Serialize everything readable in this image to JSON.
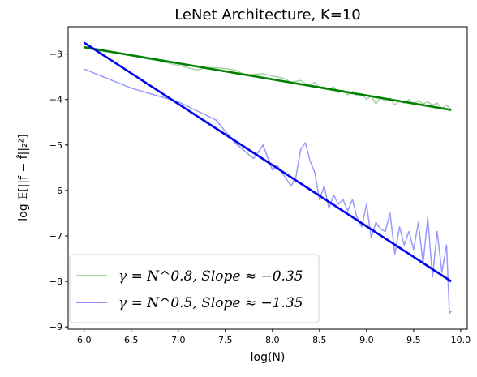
{
  "chart_data": {
    "type": "line",
    "title": "LeNet Architecture, K=10",
    "xlabel": "log(N)",
    "ylabel": "log 𝔼[||f − f̂||₂²]",
    "xlim": [
      5.83,
      10.07
    ],
    "ylim": [
      -9.05,
      -2.4
    ],
    "xticks": [
      6.0,
      6.5,
      7.0,
      7.5,
      8.0,
      8.5,
      9.0,
      9.5,
      10.0
    ],
    "xtick_labels": [
      "6.0",
      "6.5",
      "7.0",
      "7.5",
      "8.0",
      "8.5",
      "9.0",
      "9.5",
      "10.0"
    ],
    "yticks": [
      -3,
      -4,
      -5,
      -6,
      -7,
      -8,
      -9
    ],
    "ytick_labels": [
      "−3",
      "−4",
      "−5",
      "−6",
      "−7",
      "−8",
      "−9"
    ],
    "grid": false,
    "legend_position": "lower-left",
    "series": [
      {
        "name": "γ = N^0.8, Slope ≈ −0.35",
        "role": "empirical",
        "color": "#2ca02c",
        "opacity": 0.45,
        "x": [
          6.0,
          6.4,
          6.8,
          7.0,
          7.2,
          7.3,
          7.4,
          7.5,
          7.6,
          7.7,
          7.8,
          7.9,
          8.0,
          8.1,
          8.2,
          8.3,
          8.35,
          8.4,
          8.45,
          8.5,
          8.55,
          8.6,
          8.65,
          8.7,
          8.75,
          8.8,
          8.85,
          8.9,
          8.95,
          9.0,
          9.05,
          9.1,
          9.15,
          9.2,
          9.25,
          9.3,
          9.35,
          9.4,
          9.45,
          9.5,
          9.55,
          9.6,
          9.65,
          9.7,
          9.75,
          9.8,
          9.85,
          9.9
        ],
        "y": [
          -2.87,
          -3.0,
          -3.15,
          -3.25,
          -3.35,
          -3.3,
          -3.3,
          -3.32,
          -3.35,
          -3.45,
          -3.45,
          -3.43,
          -3.48,
          -3.52,
          -3.62,
          -3.58,
          -3.65,
          -3.7,
          -3.62,
          -3.74,
          -3.72,
          -3.78,
          -3.72,
          -3.85,
          -3.8,
          -3.9,
          -3.82,
          -3.93,
          -3.87,
          -4.0,
          -3.92,
          -4.1,
          -3.95,
          -4.05,
          -3.97,
          -4.12,
          -4.02,
          -4.08,
          -4.0,
          -4.1,
          -4.02,
          -4.1,
          -4.05,
          -4.12,
          -4.08,
          -4.2,
          -4.12,
          -4.22
        ]
      },
      {
        "name": "γ = N^0.5, Slope ≈ −1.35",
        "role": "empirical",
        "color": "#0000ff",
        "opacity": 0.4,
        "x": [
          6.0,
          6.5,
          7.0,
          7.4,
          7.6,
          7.8,
          7.9,
          8.0,
          8.05,
          8.1,
          8.15,
          8.2,
          8.25,
          8.3,
          8.35,
          8.4,
          8.45,
          8.5,
          8.55,
          8.6,
          8.65,
          8.7,
          8.75,
          8.8,
          8.85,
          8.9,
          8.95,
          9.0,
          9.05,
          9.1,
          9.15,
          9.2,
          9.25,
          9.3,
          9.35,
          9.4,
          9.45,
          9.5,
          9.55,
          9.6,
          9.65,
          9.7,
          9.75,
          9.8,
          9.85,
          9.88,
          9.9
        ],
        "y": [
          -3.33,
          -3.75,
          -4.05,
          -4.45,
          -4.95,
          -5.3,
          -5.0,
          -5.55,
          -5.45,
          -5.6,
          -5.75,
          -5.9,
          -5.7,
          -5.1,
          -4.95,
          -5.35,
          -5.6,
          -6.2,
          -5.9,
          -6.4,
          -6.1,
          -6.3,
          -6.2,
          -6.45,
          -6.2,
          -6.6,
          -6.8,
          -6.3,
          -7.05,
          -6.7,
          -6.85,
          -6.9,
          -6.5,
          -7.4,
          -6.8,
          -7.2,
          -6.9,
          -7.3,
          -6.7,
          -7.6,
          -6.6,
          -7.9,
          -6.9,
          -7.8,
          -7.2,
          -8.7,
          -8.65
        ]
      },
      {
        "name": "",
        "role": "fit",
        "color": "#008000",
        "x": [
          6.0,
          9.9
        ],
        "y": [
          -2.85,
          -4.23
        ]
      },
      {
        "name": "",
        "role": "fit",
        "color": "#0000ee",
        "x": [
          6.0,
          9.9
        ],
        "y": [
          -2.75,
          -8.0
        ]
      }
    ],
    "legend": [
      {
        "label": "γ = N^0.8, Slope ≈ −0.35",
        "color": "#2ca02c"
      },
      {
        "label": "γ = N^0.5, Slope ≈ −1.35",
        "color": "#0000ff"
      }
    ]
  }
}
